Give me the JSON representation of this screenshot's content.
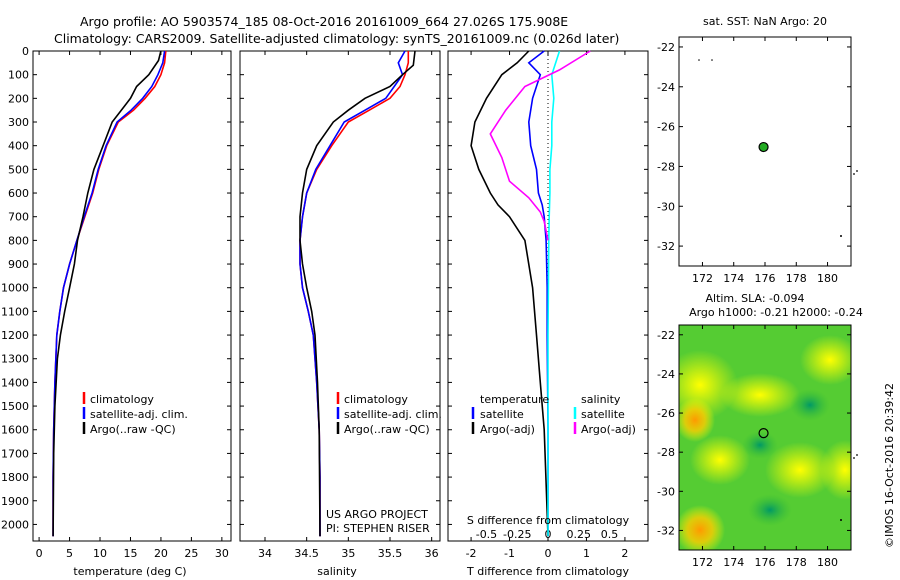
{
  "header": {
    "line1": "Argo profile: AO 5903574_185 08-Oct-2016 20161009_664 27.026S 175.908E",
    "line2": "Climatology: CARS2009. Satellite-adjusted climatology: synTS_20161009.nc (0.026d later)"
  },
  "colors": {
    "climatology": "#ff0000",
    "satellite": "#0000ff",
    "argo": "#000000",
    "sat_S": "#00ffff",
    "argo_S": "#ff00ff",
    "marker_top": "#22aa22"
  },
  "side_text": "©IMOS 16-Oct-2016 20:39:42",
  "project_credit": [
    "US ARGO PROJECT",
    "PI: STEPHEN RISER"
  ],
  "panel1": {
    "xlabel": "temperature (deg C)",
    "legend": [
      "climatology",
      "satellite-adj. clim.",
      "Argo(..raw -QC)"
    ]
  },
  "panel2": {
    "xlabel": "salinity",
    "legend": [
      "climatology",
      "satellite-adj. clim.",
      "Argo(..raw -QC)"
    ]
  },
  "panel3": {
    "xlabel_top": "S difference from climatology",
    "xlabel_bottom": "T difference from climatology",
    "legend_temp_title": "temperature",
    "legend_sal_title": "salinity",
    "legend_temp": [
      "satellite",
      "Argo(-adj)"
    ],
    "legend_sal": [
      "satellite",
      "Argo(-adj)"
    ]
  },
  "map_top": {
    "title": "sat. SST: NaN  Argo: 20"
  },
  "map_bottom": {
    "title1": "Altim. SLA: -0.094",
    "title2": "Argo h1000: -0.21 h2000: -0.24"
  },
  "chart_data": [
    {
      "type": "line",
      "name": "temperature profile",
      "xlabel": "temperature (deg C)",
      "ylabel": "",
      "xlim": [
        -1,
        31.5
      ],
      "xticks": [
        0,
        5,
        10,
        15,
        20,
        25,
        30
      ],
      "ylim": [
        2070,
        0
      ],
      "yticks": [
        0,
        100,
        200,
        300,
        400,
        500,
        600,
        700,
        800,
        900,
        1000,
        1100,
        1200,
        1300,
        1400,
        1500,
        1600,
        1700,
        1800,
        1900,
        2000
      ],
      "series": [
        {
          "name": "climatology",
          "color": "#ff0000",
          "x": [
            20.8,
            20.6,
            20.0,
            19.0,
            17.4,
            15.5,
            13.0,
            11.1,
            9.8,
            8.8,
            7.5,
            6.2,
            5.0,
            4.0,
            3.4,
            2.9,
            2.6,
            2.4,
            2.3,
            2.3
          ],
          "y": [
            0,
            50,
            100,
            150,
            200,
            250,
            300,
            400,
            500,
            600,
            700,
            800,
            900,
            1000,
            1100,
            1200,
            1400,
            1600,
            1800,
            2050
          ]
        },
        {
          "name": "satellite-adj. clim.",
          "color": "#0000ff",
          "x": [
            20.6,
            20.3,
            19.5,
            18.5,
            17.0,
            15.1,
            12.8,
            11.0,
            9.7,
            8.7,
            7.4,
            6.2,
            5.0,
            4.0,
            3.4,
            2.9,
            2.6,
            2.4,
            2.3,
            2.3
          ],
          "y": [
            0,
            50,
            100,
            150,
            200,
            250,
            300,
            400,
            500,
            600,
            700,
            800,
            900,
            1000,
            1100,
            1200,
            1400,
            1600,
            1800,
            2050
          ]
        },
        {
          "name": "Argo(..raw -QC)",
          "color": "#000000",
          "x": [
            20.0,
            19.6,
            18.0,
            16.0,
            15.0,
            13.5,
            12.0,
            10.5,
            9.0,
            8.0,
            7.2,
            6.3,
            5.8,
            5.0,
            4.2,
            3.5,
            3.0,
            2.6,
            2.4,
            2.3
          ],
          "y": [
            0,
            40,
            100,
            150,
            200,
            250,
            300,
            400,
            500,
            600,
            700,
            800,
            900,
            1000,
            1100,
            1200,
            1300,
            1500,
            1700,
            2050
          ]
        }
      ]
    },
    {
      "type": "line",
      "name": "salinity profile",
      "xlabel": "salinity",
      "ylabel": "",
      "xlim": [
        33.7,
        36.1
      ],
      "xticks": [
        34,
        34.5,
        35,
        35.5,
        36
      ],
      "ylim": [
        2070,
        0
      ],
      "series": [
        {
          "name": "climatology",
          "color": "#ff0000",
          "x": [
            35.72,
            35.72,
            35.68,
            35.62,
            35.5,
            35.25,
            35.0,
            34.8,
            34.62,
            34.5,
            34.45,
            34.42,
            34.42,
            34.45,
            34.52,
            34.58,
            34.62,
            34.65,
            34.66,
            34.66
          ],
          "y": [
            0,
            50,
            100,
            150,
            200,
            250,
            300,
            400,
            500,
            600,
            700,
            800,
            900,
            1000,
            1100,
            1200,
            1400,
            1600,
            1800,
            2050
          ]
        },
        {
          "name": "satellite-adj. clim.",
          "color": "#0000ff",
          "x": [
            35.68,
            35.6,
            35.65,
            35.55,
            35.45,
            35.2,
            34.95,
            34.78,
            34.61,
            34.5,
            34.45,
            34.42,
            34.42,
            34.45,
            34.52,
            34.58,
            34.62,
            34.65,
            34.66,
            34.66
          ],
          "y": [
            0,
            50,
            100,
            150,
            200,
            250,
            300,
            400,
            500,
            600,
            700,
            800,
            900,
            1000,
            1100,
            1200,
            1400,
            1600,
            1800,
            2050
          ]
        },
        {
          "name": "Argo(..raw -QC)",
          "color": "#000000",
          "x": [
            35.8,
            35.78,
            35.65,
            35.5,
            35.2,
            35.0,
            34.82,
            34.62,
            34.5,
            34.45,
            34.42,
            34.42,
            34.45,
            34.5,
            34.56,
            34.6,
            34.63,
            34.65,
            34.66
          ],
          "y": [
            0,
            60,
            100,
            150,
            200,
            250,
            300,
            400,
            500,
            600,
            700,
            800,
            900,
            1000,
            1100,
            1200,
            1400,
            1600,
            2050
          ]
        }
      ]
    },
    {
      "type": "line",
      "name": "difference from climatology",
      "xlabel": "T difference from climatology",
      "x2label": "S difference from climatology",
      "xlim": [
        -2.6,
        2.6
      ],
      "xticks": [
        -2,
        -1,
        0,
        1,
        2
      ],
      "xtick_labels": [
        "-2",
        "-1",
        "0",
        "1",
        "2"
      ],
      "x2ticks": [
        -1.6,
        -0.8,
        0,
        0.8,
        1.6
      ],
      "x2tick_labels": [
        "-0.5",
        "-0.25",
        "0",
        "0.25",
        "0.5"
      ],
      "ylim": [
        2070,
        0
      ],
      "series": [
        {
          "name": "temperature satellite",
          "color": "#0000ff",
          "x": [
            -0.1,
            -0.5,
            -0.2,
            -0.4,
            -0.5,
            -0.45,
            -0.3,
            -0.25,
            -0.15,
            -0.1,
            -0.05,
            -0.02,
            -0.02,
            -0.01,
            0,
            0
          ],
          "y": [
            0,
            50,
            100,
            200,
            300,
            400,
            500,
            600,
            650,
            700,
            800,
            1000,
            1200,
            1400,
            1600,
            2050
          ]
        },
        {
          "name": "temperature Argo(-adj)",
          "color": "#000000",
          "x": [
            -0.5,
            -0.8,
            -1.2,
            -1.6,
            -1.9,
            -2.0,
            -1.8,
            -1.5,
            -1.3,
            -1.0,
            -0.6,
            -0.4,
            -0.3,
            -0.2,
            -0.1,
            0
          ],
          "y": [
            0,
            50,
            100,
            200,
            300,
            400,
            500,
            600,
            650,
            700,
            800,
            1000,
            1200,
            1400,
            1600,
            2050
          ]
        },
        {
          "name": "salinity satellite",
          "color": "#00ffff",
          "x": [
            0.3,
            0.1,
            0.15,
            0.1,
            0.1,
            0.05,
            0.05,
            0.03,
            0.02,
            0,
            0
          ],
          "y": [
            0,
            100,
            200,
            300,
            400,
            500,
            600,
            700,
            800,
            1200,
            2050
          ]
        },
        {
          "name": "salinity Argo(-adj)",
          "color": "#ff00ff",
          "x": [
            1.1,
            0.3,
            -0.6,
            -1.1,
            -1.5,
            -1.2,
            -1.0,
            -0.5,
            -0.2,
            -0.1,
            0
          ],
          "y": [
            0,
            80,
            150,
            250,
            350,
            450,
            550,
            620,
            680,
            720,
            800
          ]
        }
      ]
    }
  ],
  "maps": {
    "xticks": [
      172,
      174,
      176,
      178,
      180
    ],
    "yticks": [
      -22,
      -24,
      -26,
      -28,
      -30,
      -32
    ],
    "xlim": [
      170.5,
      181.5
    ],
    "ylim": [
      -33.0,
      -21.5
    ],
    "marker": {
      "lon": 175.908,
      "lat": -27.026
    }
  }
}
